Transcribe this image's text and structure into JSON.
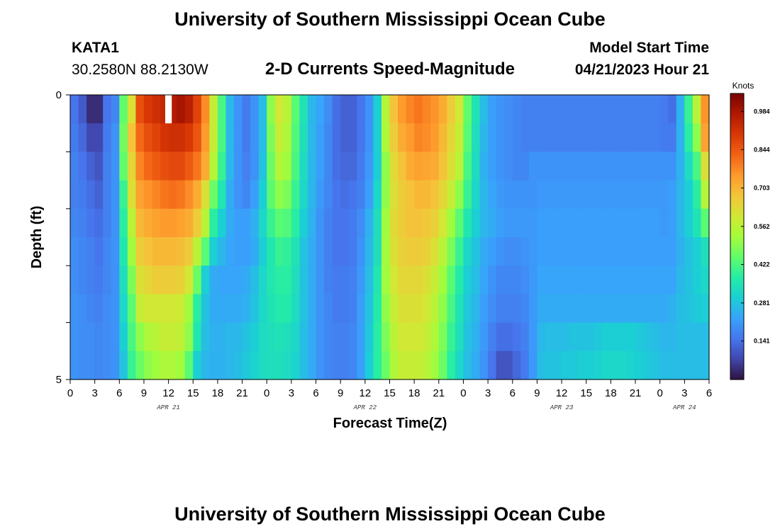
{
  "header": {
    "title": "University of Southern Mississippi Ocean Cube",
    "station": "KATA1",
    "coords": "30.2580N  88.2130W",
    "subtitle": "2-D Currents Speed-Magnitude",
    "model_start_label": "Model Start Time",
    "model_start_value": "04/21/2023 Hour 21",
    "footer_title": "University of Southern Mississippi Ocean Cube"
  },
  "chart_data": {
    "type": "heatmap",
    "title": "2-D Currents Speed-Magnitude",
    "xlabel": "Forecast Time(Z)",
    "ylabel": "Depth (ft)",
    "x_unit": "hour (Z)",
    "x_range": [
      0,
      78
    ],
    "x_ticks": [
      "0",
      "3",
      "6",
      "9",
      "12",
      "15",
      "18",
      "21",
      "0",
      "3",
      "6",
      "9",
      "12",
      "15",
      "18",
      "21",
      "0",
      "3",
      "6",
      "9",
      "12",
      "15",
      "18",
      "21",
      "0",
      "3",
      "6"
    ],
    "date_labels": [
      {
        "label": "APR 21",
        "hour": 12
      },
      {
        "label": "APR 22",
        "hour": 36
      },
      {
        "label": "APR 23",
        "hour": 60
      },
      {
        "label": "APR 24",
        "hour": 75
      }
    ],
    "y_ticks": [
      "0",
      "5"
    ],
    "y_range": [
      0,
      5
    ],
    "depth_levels": 5,
    "colorbar": {
      "title": "Knots",
      "ticks": [
        "0.984",
        "0.844",
        "0.703",
        "0.562",
        "0.422",
        "0.281",
        "0.141"
      ],
      "tick_values": [
        0.984,
        0.844,
        0.703,
        0.562,
        0.422,
        0.281,
        0.141
      ],
      "range": [
        0,
        1.05
      ],
      "colors": [
        "#30123b",
        "#4145ab",
        "#4675ed",
        "#39a2fc",
        "#1bcfd4",
        "#24eca6",
        "#61fc6c",
        "#a4fc3b",
        "#d1e834",
        "#f3c63a",
        "#fe9b2d",
        "#f36315",
        "#d93806",
        "#b11901",
        "#7a0403"
      ]
    },
    "gap": {
      "hour_start": 11.6,
      "hour_end": 12.4,
      "depth_top": 0,
      "depth_bottom": 0.5
    },
    "times": [
      0,
      1,
      2,
      3,
      4,
      5,
      6,
      7,
      8,
      9,
      10,
      11,
      12,
      13,
      14,
      15,
      16,
      17,
      18,
      19,
      20,
      21,
      22,
      23,
      24,
      25,
      26,
      27,
      28,
      29,
      30,
      31,
      32,
      33,
      34,
      35,
      36,
      37,
      38,
      39,
      40,
      41,
      42,
      43,
      44,
      45,
      46,
      47,
      48,
      49,
      50,
      51,
      52,
      53,
      54,
      55,
      56,
      57,
      58,
      59,
      60,
      61,
      62,
      63,
      64,
      65,
      66,
      67,
      68,
      69,
      70,
      71,
      72,
      73,
      74,
      75,
      76,
      77
    ],
    "rows": [
      {
        "depth": "0-0.5",
        "values": [
          0.15,
          0.11,
          0.04,
          0.04,
          0.15,
          0.18,
          0.45,
          0.62,
          0.86,
          0.9,
          0.92,
          0.94,
          0.97,
          0.99,
          0.96,
          0.88,
          0.77,
          0.58,
          0.42,
          0.26,
          0.2,
          0.16,
          0.2,
          0.27,
          0.5,
          0.6,
          0.56,
          0.44,
          0.35,
          0.26,
          0.23,
          0.19,
          0.14,
          0.12,
          0.12,
          0.15,
          0.2,
          0.3,
          0.55,
          0.68,
          0.75,
          0.78,
          0.8,
          0.78,
          0.76,
          0.72,
          0.66,
          0.6,
          0.45,
          0.35,
          0.27,
          0.22,
          0.2,
          0.19,
          0.18,
          0.17,
          0.17,
          0.17,
          0.17,
          0.17,
          0.17,
          0.17,
          0.17,
          0.17,
          0.17,
          0.17,
          0.17,
          0.17,
          0.17,
          0.17,
          0.17,
          0.17,
          0.16,
          0.14,
          0.25,
          0.4,
          0.56,
          0.76
        ]
      },
      {
        "depth": "0.5-1",
        "values": [
          0.16,
          0.13,
          0.08,
          0.08,
          0.16,
          0.2,
          0.47,
          0.68,
          0.82,
          0.86,
          0.88,
          0.91,
          0.92,
          0.92,
          0.9,
          0.85,
          0.75,
          0.58,
          0.42,
          0.26,
          0.2,
          0.16,
          0.2,
          0.27,
          0.48,
          0.58,
          0.54,
          0.43,
          0.34,
          0.26,
          0.22,
          0.18,
          0.14,
          0.12,
          0.12,
          0.15,
          0.2,
          0.3,
          0.54,
          0.66,
          0.72,
          0.75,
          0.78,
          0.77,
          0.75,
          0.7,
          0.64,
          0.58,
          0.44,
          0.34,
          0.26,
          0.22,
          0.2,
          0.19,
          0.18,
          0.17,
          0.17,
          0.17,
          0.17,
          0.17,
          0.17,
          0.17,
          0.17,
          0.17,
          0.17,
          0.17,
          0.17,
          0.17,
          0.17,
          0.17,
          0.17,
          0.17,
          0.16,
          0.16,
          0.25,
          0.38,
          0.5,
          0.74
        ]
      },
      {
        "depth": "1-1.5",
        "values": [
          0.17,
          0.15,
          0.12,
          0.1,
          0.17,
          0.2,
          0.45,
          0.64,
          0.78,
          0.82,
          0.84,
          0.86,
          0.87,
          0.87,
          0.84,
          0.8,
          0.72,
          0.55,
          0.4,
          0.26,
          0.2,
          0.17,
          0.2,
          0.28,
          0.46,
          0.55,
          0.52,
          0.42,
          0.33,
          0.26,
          0.22,
          0.18,
          0.14,
          0.13,
          0.13,
          0.16,
          0.21,
          0.3,
          0.5,
          0.63,
          0.68,
          0.72,
          0.74,
          0.73,
          0.72,
          0.68,
          0.62,
          0.56,
          0.42,
          0.33,
          0.25,
          0.22,
          0.2,
          0.19,
          0.18,
          0.18,
          0.2,
          0.2,
          0.2,
          0.2,
          0.2,
          0.2,
          0.2,
          0.2,
          0.2,
          0.2,
          0.2,
          0.2,
          0.2,
          0.2,
          0.2,
          0.2,
          0.2,
          0.2,
          0.25,
          0.33,
          0.42,
          0.62
        ]
      },
      {
        "depth": "1.5-2",
        "values": [
          0.17,
          0.16,
          0.14,
          0.12,
          0.17,
          0.2,
          0.4,
          0.62,
          0.74,
          0.76,
          0.78,
          0.8,
          0.81,
          0.8,
          0.77,
          0.72,
          0.62,
          0.46,
          0.36,
          0.24,
          0.2,
          0.18,
          0.22,
          0.3,
          0.44,
          0.5,
          0.48,
          0.4,
          0.32,
          0.26,
          0.21,
          0.18,
          0.15,
          0.14,
          0.15,
          0.17,
          0.22,
          0.32,
          0.5,
          0.62,
          0.66,
          0.68,
          0.7,
          0.7,
          0.68,
          0.64,
          0.58,
          0.5,
          0.4,
          0.32,
          0.26,
          0.23,
          0.21,
          0.2,
          0.2,
          0.2,
          0.2,
          0.21,
          0.21,
          0.21,
          0.21,
          0.21,
          0.21,
          0.21,
          0.21,
          0.21,
          0.21,
          0.21,
          0.21,
          0.21,
          0.21,
          0.21,
          0.21,
          0.22,
          0.26,
          0.3,
          0.38,
          0.55
        ]
      },
      {
        "depth": "2-2.5",
        "values": [
          0.18,
          0.17,
          0.15,
          0.14,
          0.17,
          0.2,
          0.38,
          0.56,
          0.7,
          0.72,
          0.74,
          0.75,
          0.75,
          0.74,
          0.72,
          0.66,
          0.56,
          0.38,
          0.3,
          0.24,
          0.22,
          0.22,
          0.25,
          0.32,
          0.4,
          0.44,
          0.43,
          0.38,
          0.3,
          0.25,
          0.2,
          0.17,
          0.15,
          0.15,
          0.16,
          0.19,
          0.25,
          0.34,
          0.52,
          0.63,
          0.66,
          0.68,
          0.68,
          0.67,
          0.65,
          0.6,
          0.52,
          0.44,
          0.36,
          0.3,
          0.26,
          0.24,
          0.22,
          0.21,
          0.21,
          0.21,
          0.21,
          0.22,
          0.22,
          0.22,
          0.22,
          0.22,
          0.22,
          0.22,
          0.22,
          0.22,
          0.22,
          0.22,
          0.22,
          0.22,
          0.22,
          0.22,
          0.21,
          0.22,
          0.26,
          0.3,
          0.35,
          0.44
        ]
      },
      {
        "depth": "2.5-3",
        "values": [
          0.19,
          0.18,
          0.17,
          0.15,
          0.18,
          0.2,
          0.36,
          0.52,
          0.66,
          0.68,
          0.7,
          0.7,
          0.7,
          0.69,
          0.66,
          0.56,
          0.44,
          0.3,
          0.26,
          0.23,
          0.22,
          0.22,
          0.24,
          0.3,
          0.36,
          0.4,
          0.39,
          0.35,
          0.28,
          0.24,
          0.2,
          0.17,
          0.15,
          0.15,
          0.16,
          0.2,
          0.26,
          0.34,
          0.52,
          0.62,
          0.65,
          0.66,
          0.66,
          0.65,
          0.62,
          0.56,
          0.48,
          0.4,
          0.32,
          0.28,
          0.24,
          0.22,
          0.2,
          0.19,
          0.19,
          0.2,
          0.21,
          0.22,
          0.22,
          0.22,
          0.22,
          0.22,
          0.22,
          0.22,
          0.22,
          0.22,
          0.22,
          0.22,
          0.22,
          0.22,
          0.22,
          0.22,
          0.22,
          0.22,
          0.25,
          0.28,
          0.3,
          0.34
        ]
      },
      {
        "depth": "3-3.5",
        "values": [
          0.19,
          0.18,
          0.17,
          0.16,
          0.18,
          0.2,
          0.34,
          0.48,
          0.62,
          0.64,
          0.66,
          0.66,
          0.66,
          0.65,
          0.6,
          0.46,
          0.3,
          0.24,
          0.23,
          0.23,
          0.23,
          0.24,
          0.27,
          0.32,
          0.36,
          0.38,
          0.38,
          0.34,
          0.28,
          0.24,
          0.2,
          0.17,
          0.16,
          0.16,
          0.17,
          0.21,
          0.27,
          0.36,
          0.52,
          0.6,
          0.64,
          0.64,
          0.64,
          0.62,
          0.58,
          0.52,
          0.44,
          0.37,
          0.3,
          0.27,
          0.23,
          0.2,
          0.18,
          0.18,
          0.18,
          0.19,
          0.21,
          0.23,
          0.23,
          0.23,
          0.23,
          0.23,
          0.23,
          0.23,
          0.23,
          0.23,
          0.23,
          0.23,
          0.23,
          0.23,
          0.23,
          0.23,
          0.23,
          0.23,
          0.26,
          0.28,
          0.3,
          0.32
        ]
      },
      {
        "depth": "3.5-4",
        "values": [
          0.2,
          0.19,
          0.18,
          0.17,
          0.19,
          0.2,
          0.32,
          0.44,
          0.58,
          0.6,
          0.6,
          0.6,
          0.6,
          0.59,
          0.52,
          0.38,
          0.28,
          0.24,
          0.24,
          0.24,
          0.24,
          0.25,
          0.28,
          0.32,
          0.35,
          0.37,
          0.37,
          0.33,
          0.28,
          0.24,
          0.2,
          0.18,
          0.16,
          0.16,
          0.17,
          0.22,
          0.28,
          0.37,
          0.5,
          0.58,
          0.62,
          0.62,
          0.62,
          0.6,
          0.56,
          0.5,
          0.42,
          0.35,
          0.29,
          0.26,
          0.22,
          0.19,
          0.17,
          0.17,
          0.17,
          0.18,
          0.21,
          0.24,
          0.24,
          0.24,
          0.24,
          0.24,
          0.24,
          0.24,
          0.24,
          0.24,
          0.24,
          0.24,
          0.24,
          0.24,
          0.24,
          0.24,
          0.24,
          0.25,
          0.27,
          0.28,
          0.29,
          0.3
        ]
      },
      {
        "depth": "4-4.5",
        "values": [
          0.2,
          0.19,
          0.19,
          0.18,
          0.19,
          0.2,
          0.3,
          0.42,
          0.5,
          0.54,
          0.56,
          0.58,
          0.58,
          0.57,
          0.5,
          0.36,
          0.27,
          0.25,
          0.25,
          0.26,
          0.26,
          0.28,
          0.3,
          0.33,
          0.34,
          0.35,
          0.34,
          0.32,
          0.27,
          0.24,
          0.2,
          0.18,
          0.17,
          0.17,
          0.18,
          0.22,
          0.29,
          0.38,
          0.48,
          0.56,
          0.6,
          0.6,
          0.6,
          0.58,
          0.54,
          0.48,
          0.4,
          0.34,
          0.28,
          0.25,
          0.21,
          0.17,
          0.14,
          0.14,
          0.15,
          0.17,
          0.21,
          0.26,
          0.27,
          0.27,
          0.27,
          0.28,
          0.28,
          0.28,
          0.29,
          0.3,
          0.3,
          0.3,
          0.3,
          0.29,
          0.28,
          0.27,
          0.26,
          0.26,
          0.27,
          0.27,
          0.27,
          0.27
        ]
      },
      {
        "depth": "4.5-5",
        "values": [
          0.2,
          0.19,
          0.19,
          0.18,
          0.19,
          0.2,
          0.28,
          0.4,
          0.46,
          0.5,
          0.52,
          0.54,
          0.54,
          0.52,
          0.44,
          0.3,
          0.26,
          0.25,
          0.25,
          0.26,
          0.27,
          0.29,
          0.31,
          0.33,
          0.34,
          0.34,
          0.33,
          0.31,
          0.27,
          0.24,
          0.2,
          0.18,
          0.17,
          0.17,
          0.18,
          0.22,
          0.3,
          0.38,
          0.46,
          0.54,
          0.58,
          0.58,
          0.58,
          0.56,
          0.52,
          0.46,
          0.38,
          0.32,
          0.27,
          0.24,
          0.2,
          0.15,
          0.1,
          0.1,
          0.13,
          0.16,
          0.21,
          0.27,
          0.28,
          0.28,
          0.29,
          0.29,
          0.3,
          0.3,
          0.31,
          0.32,
          0.32,
          0.32,
          0.31,
          0.3,
          0.29,
          0.28,
          0.27,
          0.27,
          0.27,
          0.27,
          0.27,
          0.27
        ]
      }
    ]
  }
}
